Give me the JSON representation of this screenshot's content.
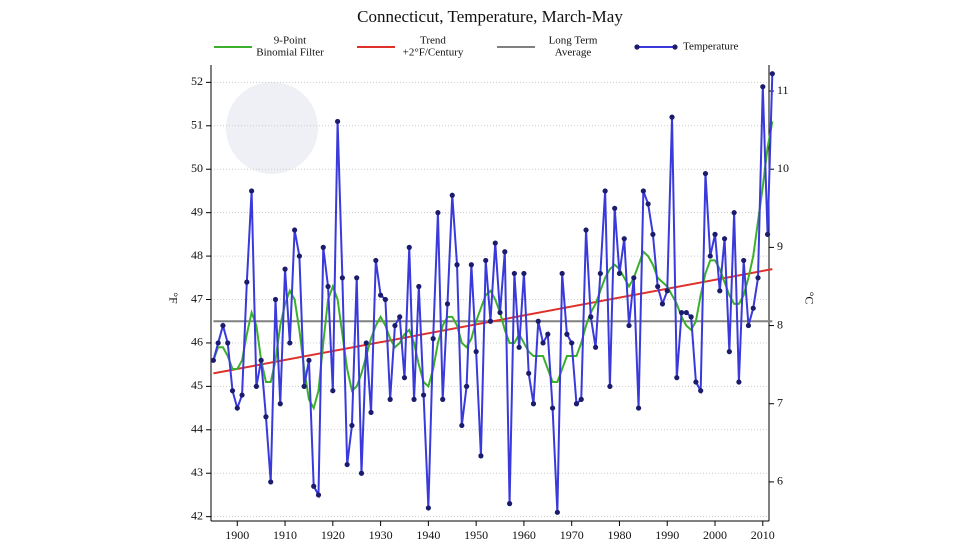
{
  "chart_data": {
    "type": "line",
    "title": "Connecticut, Temperature, March-May",
    "y_label": "°F",
    "y2_label": "°C",
    "xlim": [
      1894.5,
      2011.3
    ],
    "xticks": [
      1900,
      1910,
      1920,
      1930,
      1940,
      1950,
      1960,
      1970,
      1980,
      1990,
      2000,
      2010
    ],
    "ylim": [
      41.9,
      52.4
    ],
    "yticks": [
      42,
      43,
      44,
      45,
      46,
      47,
      48,
      49,
      50,
      51,
      52
    ],
    "y2lim": [
      5.5,
      11.333
    ],
    "y2ticks": [
      6,
      7,
      8,
      9,
      10,
      11
    ],
    "grid": true,
    "series": [
      {
        "name": [
          "9-Point",
          "Binomial Filter"
        ],
        "color": "#3cb02c",
        "x": [
          1895,
          1896,
          1897,
          1898,
          1899,
          1900,
          1901,
          1902,
          1903,
          1904,
          1905,
          1906,
          1907,
          1908,
          1909,
          1910,
          1911,
          1912,
          1913,
          1914,
          1915,
          1916,
          1917,
          1918,
          1919,
          1920,
          1921,
          1922,
          1923,
          1924,
          1925,
          1926,
          1927,
          1928,
          1929,
          1930,
          1931,
          1932,
          1933,
          1934,
          1935,
          1936,
          1937,
          1938,
          1939,
          1940,
          1941,
          1942,
          1943,
          1944,
          1945,
          1946,
          1947,
          1948,
          1949,
          1950,
          1951,
          1952,
          1953,
          1954,
          1955,
          1956,
          1957,
          1958,
          1959,
          1960,
          1961,
          1962,
          1963,
          1964,
          1965,
          1966,
          1967,
          1968,
          1969,
          1970,
          1971,
          1972,
          1973,
          1974,
          1975,
          1976,
          1977,
          1978,
          1979,
          1980,
          1981,
          1982,
          1983,
          1984,
          1985,
          1986,
          1987,
          1988,
          1989,
          1990,
          1991,
          1992,
          1993,
          1994,
          1995,
          1996,
          1997,
          1998,
          1999,
          2000,
          2001,
          2002,
          2003,
          2004,
          2005,
          2006,
          2007,
          2008,
          2009,
          2010,
          2011,
          2012
        ],
        "values": [
          45.6,
          45.9,
          45.9,
          45.7,
          45.4,
          45.4,
          45.6,
          46.2,
          46.7,
          46.4,
          45.6,
          45.1,
          45.1,
          45.6,
          46.4,
          46.9,
          47.2,
          47.0,
          46.3,
          45.4,
          44.7,
          44.5,
          44.9,
          46.0,
          47.0,
          47.3,
          47.0,
          46.2,
          45.4,
          44.9,
          45.0,
          45.3,
          45.7,
          46.1,
          46.4,
          46.6,
          46.4,
          46.1,
          45.9,
          46.0,
          46.2,
          46.3,
          46.0,
          45.5,
          45.1,
          45.0,
          45.4,
          46.0,
          46.4,
          46.6,
          46.6,
          46.4,
          46.0,
          45.9,
          46.1,
          46.5,
          46.8,
          47.1,
          47.2,
          47.0,
          46.7,
          46.3,
          46.0,
          46.0,
          46.2,
          46.0,
          45.8,
          45.7,
          45.7,
          45.7,
          45.4,
          45.1,
          45.1,
          45.4,
          45.7,
          45.7,
          45.7,
          46.0,
          46.4,
          46.7,
          46.9,
          47.2,
          47.5,
          47.7,
          47.8,
          47.7,
          47.5,
          47.3,
          47.5,
          47.8,
          48.1,
          48.0,
          47.8,
          47.5,
          47.4,
          47.3,
          47.1,
          46.9,
          46.6,
          46.4,
          46.3,
          46.5,
          47.1,
          47.6,
          47.9,
          47.9,
          47.7,
          47.4,
          47.1,
          46.9,
          46.9,
          47.1,
          47.5,
          48.0,
          48.8,
          49.6,
          50.5,
          51.1
        ]
      },
      {
        "name": [
          "Trend",
          "+2°F/Century"
        ],
        "color": "#e0302a",
        "x": [
          1895,
          2012
        ],
        "values": [
          45.3,
          47.7
        ]
      },
      {
        "name": [
          "Long Term",
          "Average"
        ],
        "color": "#808080",
        "x": [
          1895,
          2012
        ],
        "values": [
          46.5,
          46.5
        ]
      },
      {
        "name": [
          "Temperature"
        ],
        "color": "#3a3adb",
        "marker_color": "#1c1c6e",
        "x": [
          1895,
          1896,
          1897,
          1898,
          1899,
          1900,
          1901,
          1902,
          1903,
          1904,
          1905,
          1906,
          1907,
          1908,
          1909,
          1910,
          1911,
          1912,
          1913,
          1914,
          1915,
          1916,
          1917,
          1918,
          1919,
          1920,
          1921,
          1922,
          1923,
          1924,
          1925,
          1926,
          1927,
          1928,
          1929,
          1930,
          1931,
          1932,
          1933,
          1934,
          1935,
          1936,
          1937,
          1938,
          1939,
          1940,
          1941,
          1942,
          1943,
          1944,
          1945,
          1946,
          1947,
          1948,
          1949,
          1950,
          1951,
          1952,
          1953,
          1954,
          1955,
          1956,
          1957,
          1958,
          1959,
          1960,
          1961,
          1962,
          1963,
          1964,
          1965,
          1966,
          1967,
          1968,
          1969,
          1970,
          1971,
          1972,
          1973,
          1974,
          1975,
          1976,
          1977,
          1978,
          1979,
          1980,
          1981,
          1982,
          1983,
          1984,
          1985,
          1986,
          1987,
          1988,
          1989,
          1990,
          1991,
          1992,
          1993,
          1994,
          1995,
          1996,
          1997,
          1998,
          1999,
          2000,
          2001,
          2002,
          2003,
          2004,
          2005,
          2006,
          2007,
          2008,
          2009,
          2010,
          2011,
          2012
        ],
        "values": [
          45.6,
          46.0,
          46.4,
          46.0,
          44.9,
          44.5,
          44.8,
          47.4,
          49.5,
          45.0,
          45.6,
          44.3,
          42.8,
          47.0,
          44.6,
          47.7,
          46.0,
          48.6,
          48.0,
          45.0,
          45.6,
          42.7,
          42.5,
          48.2,
          47.3,
          44.9,
          51.1,
          47.5,
          43.2,
          44.1,
          47.5,
          43.0,
          46.0,
          44.4,
          47.9,
          47.1,
          47.0,
          44.7,
          46.4,
          46.6,
          45.2,
          48.2,
          44.7,
          47.3,
          44.8,
          42.2,
          46.1,
          49.0,
          44.7,
          46.9,
          49.4,
          47.8,
          44.1,
          45.0,
          47.8,
          45.8,
          43.4,
          47.9,
          46.5,
          48.3,
          46.7,
          48.1,
          42.3,
          47.6,
          45.9,
          47.6,
          45.3,
          44.6,
          46.5,
          46.0,
          46.2,
          44.5,
          42.1,
          47.6,
          46.2,
          46.0,
          44.6,
          44.7,
          48.6,
          46.6,
          45.9,
          47.6,
          49.5,
          45.0,
          49.1,
          47.6,
          48.4,
          46.4,
          47.5,
          44.5,
          49.5,
          49.2,
          48.5,
          47.3,
          46.9,
          47.2,
          51.2,
          45.2,
          46.7,
          46.7,
          46.6,
          45.1,
          44.9,
          49.9,
          48.0,
          48.5,
          47.2,
          48.4,
          45.8,
          49.0,
          45.1,
          47.9,
          46.4,
          46.8,
          47.5,
          51.9,
          48.5,
          52.2
        ]
      }
    ]
  }
}
